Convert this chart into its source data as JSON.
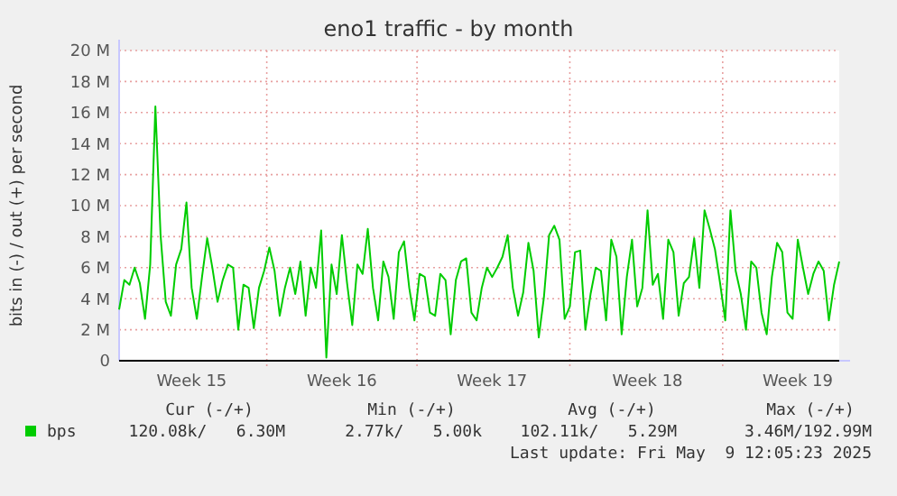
{
  "chart_data": {
    "type": "line",
    "title": "eno1 traffic - by month",
    "ylabel": "bits in (-) / out (+) per second",
    "categories": [
      null,
      null,
      null,
      null,
      null,
      null,
      null,
      null,
      null,
      null,
      null,
      null,
      null,
      null,
      "Week 15",
      null,
      null,
      null,
      null,
      null,
      null,
      null,
      null,
      null,
      null,
      null,
      null,
      null,
      null,
      null,
      null,
      null,
      null,
      null,
      null,
      null,
      null,
      null,
      null,
      null,
      null,
      null,
      null,
      "Week 16",
      null,
      null,
      null,
      null,
      null,
      null,
      null,
      null,
      null,
      null,
      null,
      null,
      null,
      null,
      null,
      null,
      null,
      null,
      null,
      null,
      null,
      null,
      null,
      null,
      null,
      null,
      null,
      null,
      "Week 17",
      null,
      null,
      null,
      null,
      null,
      null,
      null,
      null,
      null,
      null,
      null,
      null,
      null,
      null,
      null,
      null,
      null,
      null,
      null,
      null,
      null,
      null,
      null,
      null,
      null,
      null,
      null,
      null,
      null,
      "Week 18",
      null,
      null,
      null,
      null,
      null,
      null,
      null,
      null,
      null,
      null,
      null,
      null,
      null,
      null,
      null,
      null,
      null,
      null,
      null,
      null,
      null,
      null,
      null,
      null,
      null,
      null,
      null,
      null,
      "Week 19",
      null,
      null,
      null,
      null,
      null,
      null,
      null,
      null
    ],
    "series": [
      {
        "name": "bps",
        "color": "#00cc00",
        "values": [
          3300000,
          5200000,
          4900000,
          6000000,
          5000000,
          2700000,
          6200000,
          16400000,
          8100000,
          3800000,
          2900000,
          6200000,
          7200000,
          10200000,
          4700000,
          2700000,
          5400000,
          7900000,
          6000000,
          3800000,
          5200000,
          6200000,
          6000000,
          2000000,
          4900000,
          4700000,
          2100000,
          4700000,
          5800000,
          7300000,
          5800000,
          2900000,
          4700000,
          6000000,
          4300000,
          6400000,
          2900000,
          6000000,
          4700000,
          8400000,
          200000,
          6200000,
          4300000,
          8100000,
          5000000,
          2300000,
          6200000,
          5600000,
          8500000,
          4700000,
          2600000,
          6400000,
          5400000,
          2700000,
          7000000,
          7700000,
          4700000,
          2600000,
          5600000,
          5400000,
          3100000,
          2900000,
          5600000,
          5200000,
          1700000,
          5200000,
          6400000,
          6600000,
          3100000,
          2600000,
          4700000,
          6000000,
          5400000,
          6000000,
          6700000,
          8100000,
          4700000,
          2900000,
          4400000,
          7600000,
          5800000,
          1500000,
          4100000,
          8100000,
          8700000,
          7800000,
          2700000,
          3500000,
          7000000,
          7100000,
          2000000,
          4300000,
          6000000,
          5800000,
          2600000,
          7800000,
          6700000,
          1700000,
          5400000,
          7800000,
          3500000,
          4700000,
          9700000,
          4900000,
          5600000,
          2700000,
          7800000,
          7000000,
          2900000,
          5000000,
          5400000,
          7900000,
          4700000,
          9700000,
          8500000,
          7200000,
          5000000,
          2600000,
          9700000,
          5800000,
          4300000,
          2000000,
          6400000,
          6000000,
          3100000,
          1700000,
          5400000,
          7600000,
          7000000,
          3100000,
          2700000,
          7800000,
          6000000,
          4300000,
          5600000,
          6400000,
          5800000,
          2600000,
          4900000,
          6400000
        ]
      }
    ],
    "ylim": [
      0,
      20000000
    ],
    "yticks": [
      {
        "value": 0,
        "label": "0"
      },
      {
        "value": 2000000,
        "label": "2 M"
      },
      {
        "value": 4000000,
        "label": "4 M"
      },
      {
        "value": 6000000,
        "label": "6 M"
      },
      {
        "value": 8000000,
        "label": "8 M"
      },
      {
        "value": 10000000,
        "label": "10 M"
      },
      {
        "value": 12000000,
        "label": "12 M"
      },
      {
        "value": 14000000,
        "label": "14 M"
      },
      {
        "value": 16000000,
        "label": "16 M"
      },
      {
        "value": 18000000,
        "label": "18 M"
      },
      {
        "value": 20000000,
        "label": "20 M"
      }
    ],
    "grid": true,
    "legend": "bottom",
    "annotations": [
      "Cur (-/+)",
      "Min (-/+)",
      "Avg (-/+)",
      "Max (-/+)",
      "120.08k/   6.30M",
      "2.77k/   5.00k",
      "102.11k/   5.29M",
      "3.46M/192.99M",
      "Last update: Fri May  9 12:05:23 2025"
    ]
  }
}
